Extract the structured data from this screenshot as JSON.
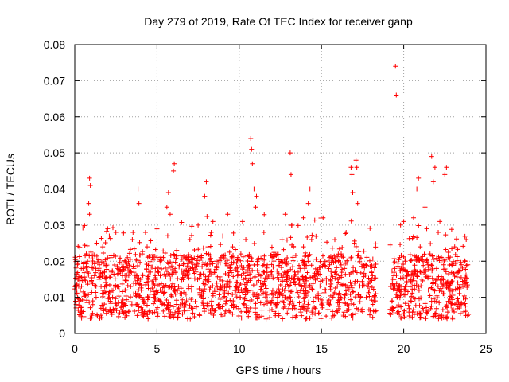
{
  "chart_data": {
    "type": "scatter",
    "title": "Day 279 of 2019, Rate Of TEC Index for receiver ganp",
    "xlabel": "GPS time / hours",
    "ylabel": "ROTI / TECUs",
    "xlim": [
      0,
      25
    ],
    "ylim": [
      0,
      0.08
    ],
    "x_ticks": [
      0,
      5,
      10,
      15,
      20,
      25
    ],
    "x_tick_labels": [
      "0",
      "5",
      "10",
      "15",
      "20",
      "25"
    ],
    "y_ticks": [
      0,
      0.01,
      0.02,
      0.03,
      0.04,
      0.05,
      0.06,
      0.07,
      0.08
    ],
    "y_tick_labels": [
      "0",
      "0.01",
      "0.02",
      "0.03",
      "0.04",
      "0.05",
      "0.06",
      "0.07",
      "0.08"
    ],
    "grid": true,
    "marker": "+",
    "color": "#ff0000",
    "series": [
      {
        "name": "ROTI",
        "points": [
          [
            0.1,
            0.012
          ],
          [
            0.2,
            0.015
          ],
          [
            0.3,
            0.009
          ],
          [
            0.4,
            0.006
          ],
          [
            0.5,
            0.018
          ],
          [
            0.6,
            0.011
          ],
          [
            0.7,
            0.022
          ],
          [
            0.8,
            0.014
          ],
          [
            0.9,
            0.043
          ],
          [
            0.95,
            0.041
          ],
          [
            0.85,
            0.036
          ],
          [
            0.9,
            0.033
          ],
          [
            1.0,
            0.012
          ],
          [
            1.1,
            0.008
          ],
          [
            1.2,
            0.016
          ],
          [
            1.3,
            0.01
          ],
          [
            1.5,
            0.019
          ],
          [
            1.6,
            0.013
          ],
          [
            1.7,
            0.024
          ],
          [
            1.8,
            0.017
          ],
          [
            2.0,
            0.029
          ],
          [
            2.1,
            0.027
          ],
          [
            2.2,
            0.021
          ],
          [
            2.3,
            0.01
          ],
          [
            2.5,
            0.028
          ],
          [
            2.6,
            0.018
          ],
          [
            2.7,
            0.012
          ],
          [
            2.9,
            0.016
          ],
          [
            3.0,
            0.008
          ],
          [
            3.2,
            0.021
          ],
          [
            3.4,
            0.013
          ],
          [
            3.5,
            0.026
          ],
          [
            3.6,
            0.018
          ],
          [
            3.7,
            0.011
          ],
          [
            3.8,
            0.005
          ],
          [
            3.85,
            0.04
          ],
          [
            3.9,
            0.036
          ],
          [
            4.0,
            0.015
          ],
          [
            4.1,
            0.022
          ],
          [
            4.2,
            0.009
          ],
          [
            4.3,
            0.028
          ],
          [
            4.4,
            0.024
          ],
          [
            4.5,
            0.017
          ],
          [
            4.6,
            0.012
          ],
          [
            4.7,
            0.014
          ],
          [
            4.8,
            0.01
          ],
          [
            4.9,
            0.018
          ],
          [
            5.0,
            0.012
          ],
          [
            5.2,
            0.016
          ],
          [
            5.4,
            0.011
          ],
          [
            5.6,
            0.035
          ],
          [
            5.7,
            0.039
          ],
          [
            5.8,
            0.033
          ],
          [
            5.9,
            0.013
          ],
          [
            6.0,
            0.045
          ],
          [
            6.05,
            0.047
          ],
          [
            6.1,
            0.018
          ],
          [
            6.2,
            0.023
          ],
          [
            6.4,
            0.011
          ],
          [
            6.6,
            0.015
          ],
          [
            6.8,
            0.009
          ],
          [
            7.0,
            0.026
          ],
          [
            7.1,
            0.012
          ],
          [
            7.3,
            0.019
          ],
          [
            7.5,
            0.03
          ],
          [
            7.6,
            0.005
          ],
          [
            7.7,
            0.021
          ],
          [
            7.8,
            0.014
          ],
          [
            7.9,
            0.038
          ],
          [
            8.0,
            0.042
          ],
          [
            8.1,
            0.024
          ],
          [
            8.2,
            0.017
          ],
          [
            8.3,
            0.028
          ],
          [
            8.4,
            0.031
          ],
          [
            8.5,
            0.012
          ],
          [
            8.6,
            0.02
          ],
          [
            8.8,
            0.015
          ],
          [
            9.0,
            0.027
          ],
          [
            9.2,
            0.009
          ],
          [
            9.3,
            0.033
          ],
          [
            9.5,
            0.019
          ],
          [
            9.6,
            0.024
          ],
          [
            9.8,
            0.013
          ],
          [
            9.9,
            0.016
          ],
          [
            10.0,
            0.01
          ],
          [
            10.1,
            0.022
          ],
          [
            10.2,
            0.031
          ],
          [
            10.3,
            0.008
          ],
          [
            10.4,
            0.026
          ],
          [
            10.5,
            0.014
          ],
          [
            10.6,
            0.006
          ],
          [
            10.7,
            0.054
          ],
          [
            10.75,
            0.051
          ],
          [
            10.8,
            0.047
          ],
          [
            10.9,
            0.04
          ],
          [
            11.0,
            0.035
          ],
          [
            11.05,
            0.038
          ],
          [
            11.1,
            0.019
          ],
          [
            11.3,
            0.012
          ],
          [
            11.5,
            0.028
          ],
          [
            11.7,
            0.009
          ],
          [
            11.9,
            0.017
          ],
          [
            12.0,
            0.021
          ],
          [
            12.2,
            0.011
          ],
          [
            12.4,
            0.015
          ],
          [
            12.6,
            0.026
          ],
          [
            12.8,
            0.033
          ],
          [
            12.9,
            0.019
          ],
          [
            13.1,
            0.05
          ],
          [
            13.15,
            0.044
          ],
          [
            13.2,
            0.03
          ],
          [
            13.3,
            0.024
          ],
          [
            13.5,
            0.012
          ],
          [
            13.7,
            0.018
          ],
          [
            13.9,
            0.032
          ],
          [
            14.0,
            0.01
          ],
          [
            14.2,
            0.036
          ],
          [
            14.3,
            0.04
          ],
          [
            14.4,
            0.026
          ],
          [
            14.6,
            0.016
          ],
          [
            14.8,
            0.011
          ],
          [
            15.0,
            0.008
          ],
          [
            15.1,
            0.032
          ],
          [
            15.3,
            0.014
          ],
          [
            15.5,
            0.019
          ],
          [
            15.7,
            0.01
          ],
          [
            15.9,
            0.006
          ],
          [
            16.0,
            0.015
          ],
          [
            16.2,
            0.022
          ],
          [
            16.4,
            0.018
          ],
          [
            16.5,
            0.028
          ],
          [
            16.6,
            0.013
          ],
          [
            16.8,
            0.046
          ],
          [
            16.85,
            0.044
          ],
          [
            16.9,
            0.039
          ],
          [
            17.0,
            0.025
          ],
          [
            17.1,
            0.048
          ],
          [
            17.15,
            0.046
          ],
          [
            17.2,
            0.036
          ],
          [
            17.3,
            0.021
          ],
          [
            17.5,
            0.014
          ],
          [
            17.7,
            0.019
          ],
          [
            17.9,
            0.012
          ],
          [
            18.1,
            0.016
          ],
          [
            18.2,
            0.009
          ],
          [
            18.3,
            0.011
          ],
          [
            19.2,
            0.013
          ],
          [
            19.3,
            0.009
          ],
          [
            19.4,
            0.016
          ],
          [
            19.5,
            0.074
          ],
          [
            19.55,
            0.066
          ],
          [
            19.6,
            0.01
          ],
          [
            19.7,
            0.013
          ],
          [
            19.9,
            0.027
          ],
          [
            20.0,
            0.031
          ],
          [
            20.1,
            0.02
          ],
          [
            20.2,
            0.014
          ],
          [
            20.4,
            0.009
          ],
          [
            20.5,
            0.017
          ],
          [
            20.6,
            0.032
          ],
          [
            20.8,
            0.04
          ],
          [
            20.9,
            0.043
          ],
          [
            21.0,
            0.024
          ],
          [
            21.1,
            0.015
          ],
          [
            21.3,
            0.035
          ],
          [
            21.4,
            0.029
          ],
          [
            21.5,
            0.012
          ],
          [
            21.6,
            0.022
          ],
          [
            21.7,
            0.049
          ],
          [
            21.8,
            0.042
          ],
          [
            21.9,
            0.046
          ],
          [
            22.0,
            0.018
          ],
          [
            22.1,
            0.028
          ],
          [
            22.2,
            0.031
          ],
          [
            22.3,
            0.015
          ],
          [
            22.4,
            0.011
          ],
          [
            22.5,
            0.044
          ],
          [
            22.6,
            0.046
          ],
          [
            22.7,
            0.021
          ],
          [
            22.9,
            0.01
          ],
          [
            23.1,
            0.024
          ],
          [
            23.3,
            0.017
          ],
          [
            23.5,
            0.008
          ],
          [
            23.6,
            0.013
          ],
          [
            23.8,
            0.026
          ],
          [
            23.9,
            0.019
          ]
        ]
      }
    ],
    "dense_band": {
      "x_range": [
        0,
        23.95
      ],
      "gaps": [
        [
          18.35,
          19.15
        ]
      ],
      "base_range": [
        0.004,
        0.022
      ],
      "count": 1800
    }
  }
}
